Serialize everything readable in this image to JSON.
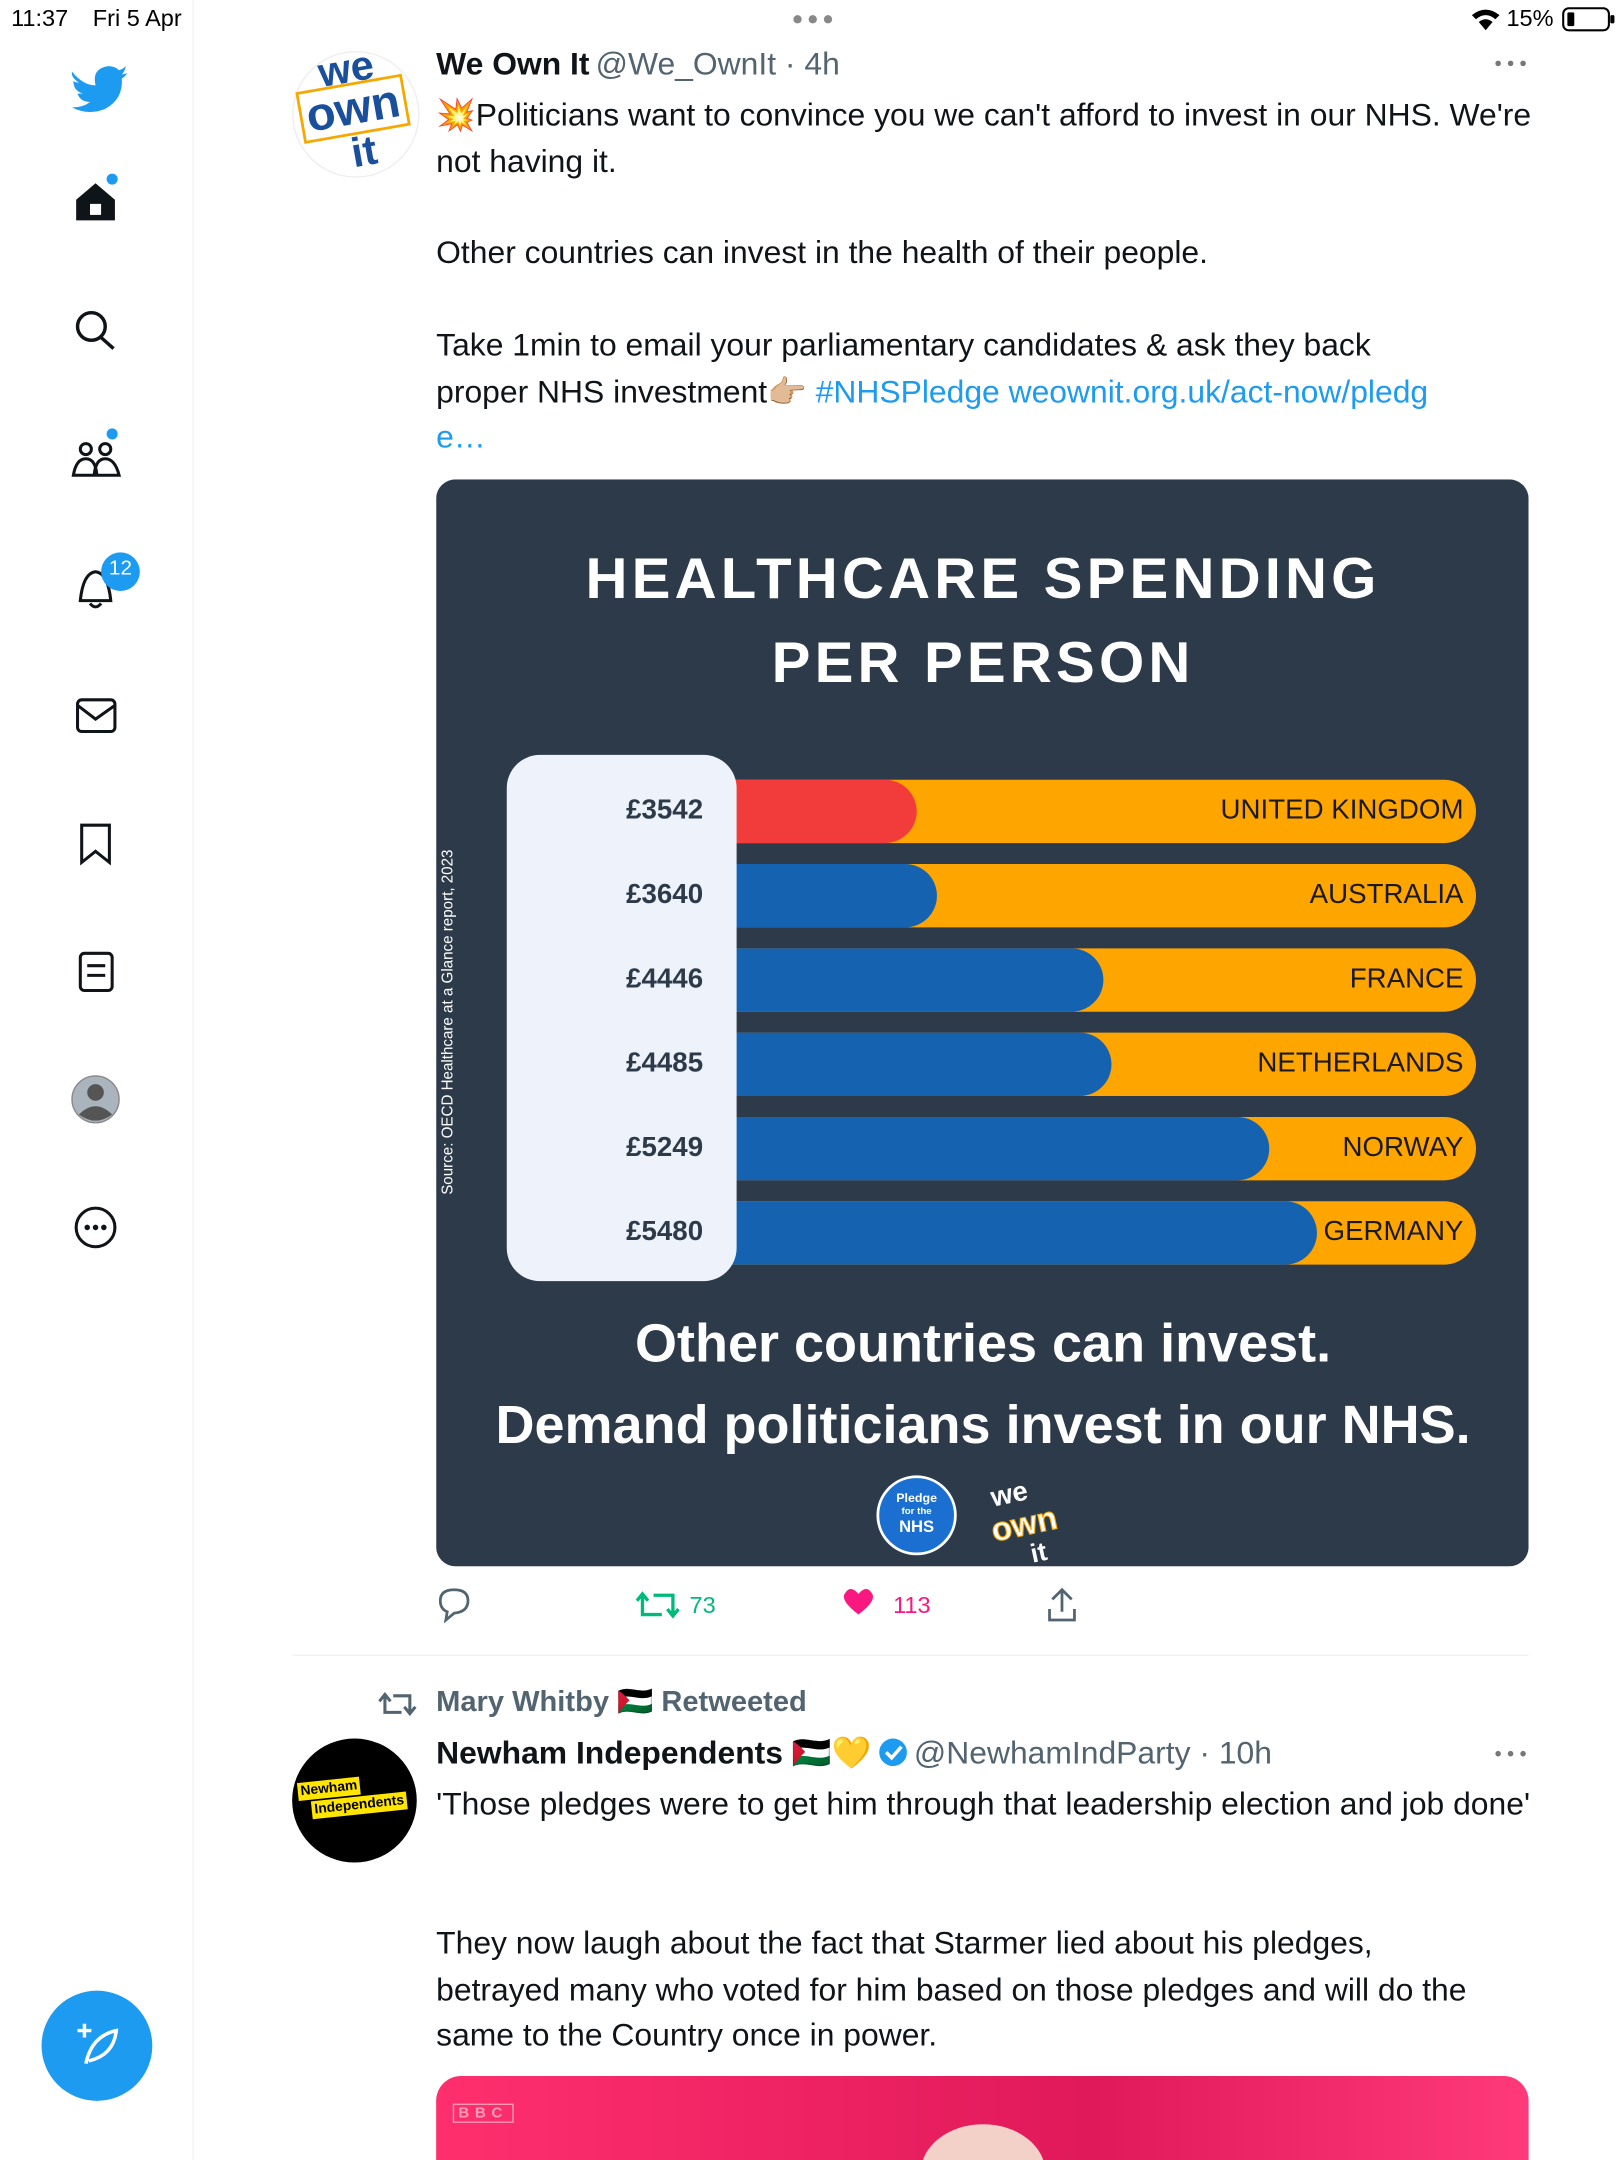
{
  "status_bar": {
    "time": "11:37",
    "date": "Fri 5 Apr",
    "battery": "15%"
  },
  "sidebar": {
    "notifications_badge": "12"
  },
  "tweets": [
    {
      "avatar_text": [
        "we",
        "own",
        "it"
      ],
      "author": "We Own It",
      "handle": "@We_OwnIt",
      "time": "4h",
      "paragraphs": [
        "💥Politicians want to convince you we can't afford to invest in our NHS. We're not having it.",
        "Other countries can invest in the health of their people."
      ],
      "paragraph_last": "Take 1min to email your parliamentary candidates & ask they back proper NHS investment👉🏼",
      "hashtag": "#NHSPledge",
      "link": "weownit.org.uk/act-now/pledge…",
      "retweets": "73",
      "likes": "113"
    },
    {
      "retweeted_by": "Mary Whitby 🇵🇸 Retweeted",
      "avatar_text": [
        "Newham",
        "Independents"
      ],
      "author": "Newham Independents 🇵🇸💛",
      "handle": "@NewhamIndParty",
      "time": "10h",
      "paragraphs": [
        "'Those pledges were to get him through that leadership election and job done'",
        "They now laugh about the fact that Starmer lied about his pledges, betrayed many who voted for him based on those pledges and will do the same to the Country once in power."
      ],
      "image_label": "BBC"
    }
  ],
  "chart_data": {
    "type": "bar",
    "orientation": "horizontal",
    "title": [
      "HEALTHCARE SPENDING",
      "PER PERSON"
    ],
    "categories": [
      "UNITED KINGDOM",
      "AUSTRALIA",
      "FRANCE",
      "NETHERLANDS",
      "NORWAY",
      "GERMANY"
    ],
    "values": [
      3542,
      3640,
      4446,
      4485,
      5249,
      5480
    ],
    "value_labels": [
      "£3542",
      "£3640",
      "£4446",
      "£4485",
      "£5249",
      "£5480"
    ],
    "colors": [
      "#f23b3b",
      "#1563b0",
      "#1563b0",
      "#1563b0",
      "#1563b0",
      "#1563b0"
    ],
    "track_color": "#ffa500",
    "background": "#2d3a4a",
    "xlim": [
      2670,
      6250
    ],
    "source": "Source: OECD Healthcare at a Glance report, 2023",
    "footer": [
      "Other countries can invest.",
      "Demand politicians invest in our NHS."
    ],
    "logos": [
      [
        "Pledge",
        "for the",
        "NHS"
      ],
      [
        "we",
        "own",
        "it"
      ]
    ]
  }
}
